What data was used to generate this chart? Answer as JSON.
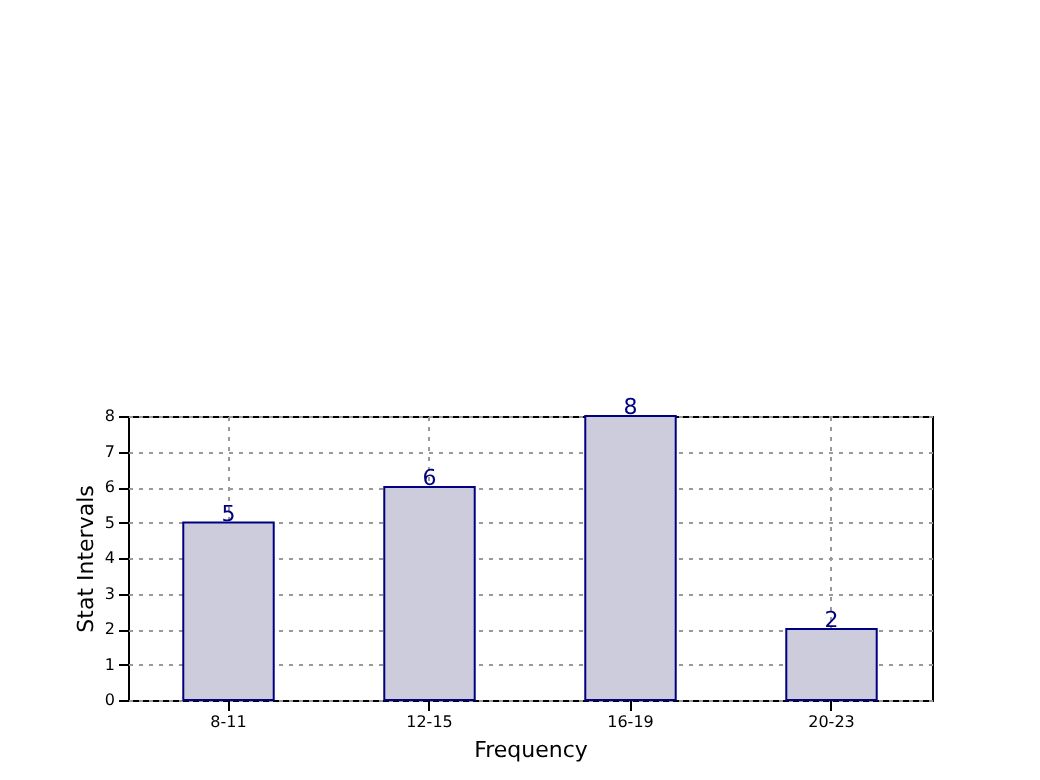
{
  "chart_data": {
    "type": "bar",
    "xlabel": "Frequency",
    "ylabel": "Stat Intervals",
    "categories": [
      "8-11",
      "12-15",
      "16-19",
      "20-23"
    ],
    "series": [
      {
        "color": "#ccccdd",
        "values": [
          5,
          6,
          8,
          2
        ]
      }
    ],
    "ylim": [
      0,
      8
    ],
    "yticks": [
      0,
      1,
      2,
      3,
      4,
      5,
      6,
      7,
      8
    ],
    "grid": true,
    "data_labels": true
  }
}
